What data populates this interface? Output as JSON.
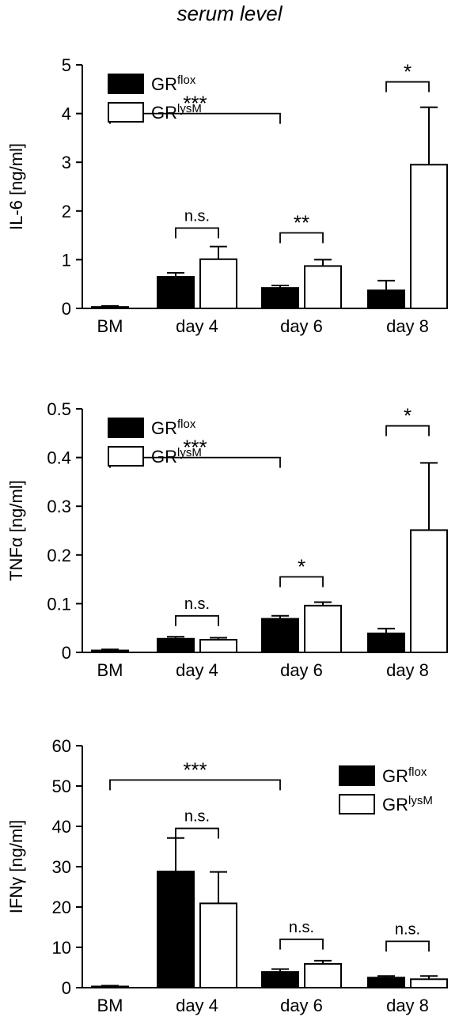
{
  "figure_title": "serum level",
  "chart_data": [
    {
      "type": "bar",
      "ylabel": "IL-6 [ng/ml]",
      "ylim": [
        0,
        5
      ],
      "yticks": [
        0,
        1,
        2,
        3,
        4,
        5
      ],
      "categories": [
        "BM",
        "day 4",
        "day 6",
        "day 8"
      ],
      "legend": {
        "placement": "top-left",
        "items": [
          {
            "base": "GR",
            "sup": "flox",
            "fill": "#000000"
          },
          {
            "base": "GR",
            "sup": "lysM",
            "fill": "#ffffff"
          }
        ]
      },
      "series": [
        {
          "name": "GRflox",
          "fill": "#000000",
          "values": [
            0.03,
            0.65,
            0.42,
            0.37
          ],
          "errors": [
            0.02,
            0.08,
            0.05,
            0.2
          ]
        },
        {
          "name": "GRlysM",
          "fill": "#ffffff",
          "values": [
            null,
            1.01,
            0.87,
            2.95
          ],
          "errors": [
            null,
            0.26,
            0.13,
            1.18
          ]
        }
      ],
      "annotations": [
        {
          "label": "***",
          "from": "BM",
          "to": "day 6",
          "level": 4.0
        },
        {
          "label": "n.s.",
          "from": "day 4",
          "to": "day 4",
          "level": 1.65
        },
        {
          "label": "**",
          "from": "day 6",
          "to": "day 6",
          "level": 1.55
        },
        {
          "label": "*",
          "from": "day 8",
          "to": "day 8",
          "level": 4.65
        }
      ]
    },
    {
      "type": "bar",
      "ylabel": "TNFα [ng/ml]",
      "ylim": [
        0,
        0.5
      ],
      "yticks": [
        0,
        0.1,
        0.2,
        0.3,
        0.4,
        0.5
      ],
      "categories": [
        "BM",
        "day 4",
        "day 6",
        "day 8"
      ],
      "legend": {
        "placement": "top-left",
        "items": [
          {
            "base": "GR",
            "sup": "flox",
            "fill": "#000000"
          },
          {
            "base": "GR",
            "sup": "lysM",
            "fill": "#ffffff"
          }
        ]
      },
      "series": [
        {
          "name": "GRflox",
          "fill": "#000000",
          "values": [
            0.004,
            0.028,
            0.069,
            0.039
          ],
          "errors": [
            0.002,
            0.004,
            0.006,
            0.01
          ]
        },
        {
          "name": "GRlysM",
          "fill": "#ffffff",
          "values": [
            null,
            0.026,
            0.096,
            0.251
          ],
          "errors": [
            null,
            0.004,
            0.007,
            0.138
          ]
        }
      ],
      "annotations": [
        {
          "label": "***",
          "from": "BM",
          "to": "day 6",
          "level": 0.4
        },
        {
          "label": "n.s.",
          "from": "day 4",
          "to": "day 4",
          "level": 0.075
        },
        {
          "label": "*",
          "from": "day 6",
          "to": "day 6",
          "level": 0.155
        },
        {
          "label": "*",
          "from": "day 8",
          "to": "day 8",
          "level": 0.465
        }
      ]
    },
    {
      "type": "bar",
      "ylabel": "IFNγ [ng/ml]",
      "ylim": [
        0,
        60
      ],
      "yticks": [
        0,
        10,
        20,
        30,
        40,
        50,
        60
      ],
      "categories": [
        "BM",
        "day 4",
        "day 6",
        "day 8"
      ],
      "legend": {
        "placement": "top-right",
        "items": [
          {
            "base": "GR",
            "sup": "flox",
            "fill": "#000000"
          },
          {
            "base": "GR",
            "sup": "lysM",
            "fill": "#ffffff"
          }
        ]
      },
      "series": [
        {
          "name": "GRflox",
          "fill": "#000000",
          "values": [
            0.3,
            28.8,
            3.9,
            2.5
          ],
          "errors": [
            0.2,
            8.3,
            0.7,
            0.4
          ]
        },
        {
          "name": "GRlysM",
          "fill": "#ffffff",
          "values": [
            null,
            20.9,
            5.9,
            2.1
          ],
          "errors": [
            null,
            7.8,
            0.8,
            0.8
          ]
        }
      ],
      "annotations": [
        {
          "label": "***",
          "from": "BM",
          "to": "day 6",
          "level": 51.5
        },
        {
          "label": "n.s.",
          "from": "day 4",
          "to": "day 4",
          "level": 39.5
        },
        {
          "label": "n.s.",
          "from": "day 6",
          "to": "day 6",
          "level": 12.0
        },
        {
          "label": "n.s.",
          "from": "day 8",
          "to": "day 8",
          "level": 11.5
        }
      ]
    }
  ]
}
